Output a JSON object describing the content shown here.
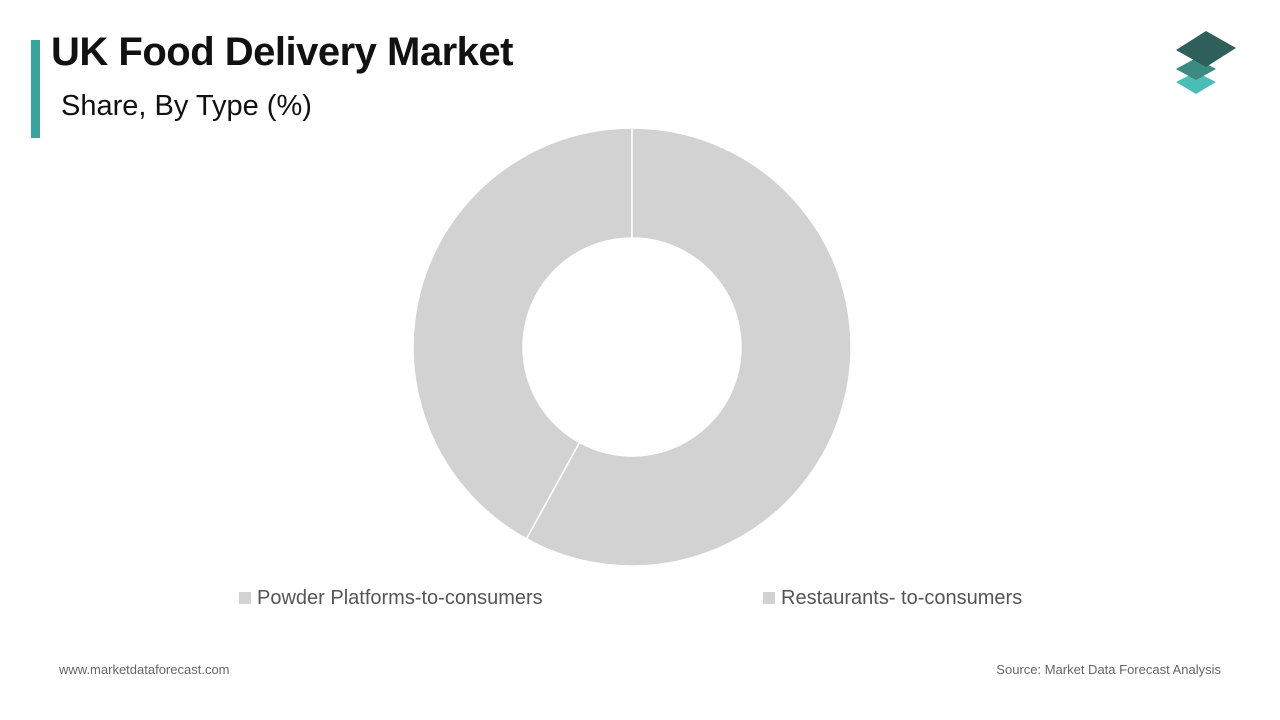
{
  "header": {
    "title": "UK Food Delivery Market",
    "subtitle": "Share, By Type (%)",
    "accent_color": "#3aa39c"
  },
  "logo": {
    "icon": "stacked-layers-icon",
    "colors": [
      "#2f5f5a",
      "#3d8a82",
      "#49bdb6"
    ]
  },
  "chart_data": {
    "type": "pie",
    "donut": true,
    "categories": [
      "Powder Platforms-to-consumers",
      "Restaurants- to-consumers"
    ],
    "values": [
      42,
      58
    ],
    "colors": [
      "#d3d2d3",
      "#d3d2d3"
    ],
    "legend_position": "bottom",
    "title": "Share, By Type (%)"
  },
  "footer": {
    "website": "www.marketdataforecast.com",
    "source": "Source: Market Data Forecast Analysis"
  }
}
